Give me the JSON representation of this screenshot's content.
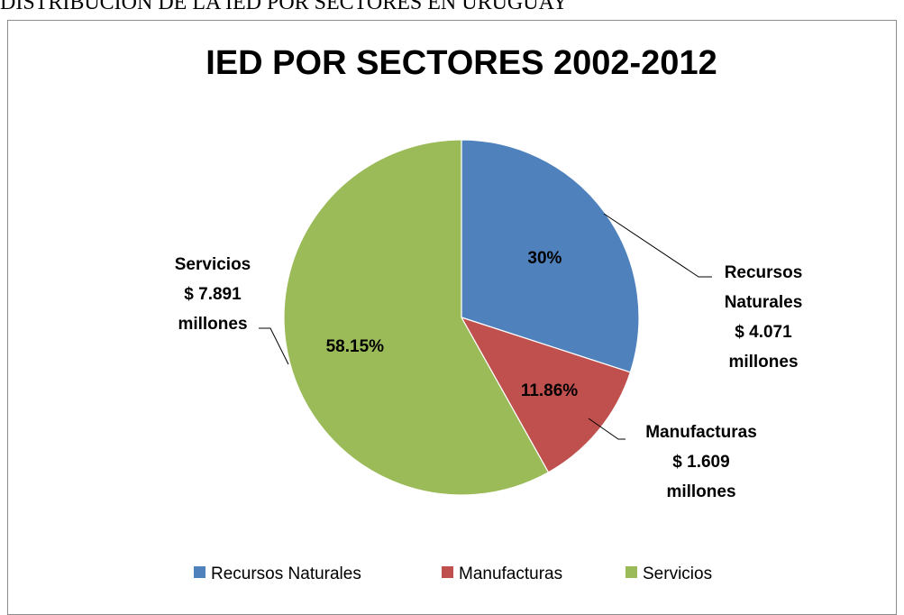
{
  "document": {
    "heading": "DISTRIBUCION DE LA IED POR SECTORES EN URUGUAY"
  },
  "chart_data": {
    "type": "pie",
    "title": "IED POR SECTORES 2002-2012",
    "categories": [
      "Recursos Naturales",
      "Manufacturas",
      "Servicios"
    ],
    "values": [
      30,
      11.86,
      58.15
    ],
    "value_labels": [
      "30%",
      "11.86%",
      "58.15%"
    ],
    "callouts": [
      [
        "Recursos",
        "Naturales",
        "$ 4.071",
        "millones"
      ],
      [
        "Manufacturas",
        "$ 1.609",
        "millones"
      ],
      [
        "Servicios",
        "$ 7.891",
        "millones"
      ]
    ],
    "colors": [
      "#4f81bd",
      "#c0504d",
      "#9bbb59"
    ],
    "legend_position": "bottom",
    "start_angle": "12 o'clock",
    "direction": "clockwise"
  }
}
